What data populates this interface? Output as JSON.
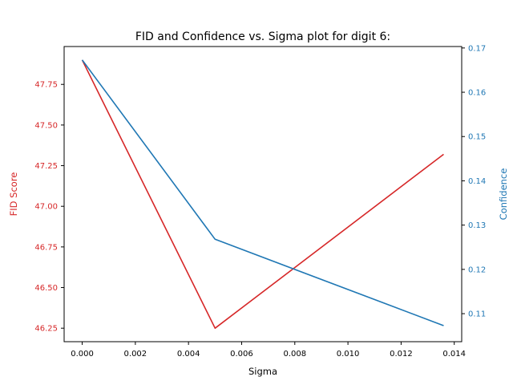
{
  "chart_data": {
    "type": "line",
    "title": "FID and Confidence vs. Sigma plot for digit 6:",
    "xlabel": "Sigma",
    "xlim": [
      -0.00068,
      0.01428
    ],
    "xticks": [
      0.0,
      0.002,
      0.004,
      0.006,
      0.008,
      0.01,
      0.012,
      0.014
    ],
    "xtick_labels": [
      "0.000",
      "0.002",
      "0.004",
      "0.006",
      "0.008",
      "0.010",
      "0.012",
      "0.014"
    ],
    "grid": false,
    "left_axis": {
      "label": "FID Score",
      "color": "#d62728",
      "ylim": [
        46.167,
        47.983
      ],
      "ticks": [
        46.25,
        46.5,
        46.75,
        47.0,
        47.25,
        47.5,
        47.75
      ],
      "tick_labels": [
        "46.25",
        "46.50",
        "46.75",
        "47.00",
        "47.25",
        "47.50",
        "47.75"
      ]
    },
    "right_axis": {
      "label": "Confidence",
      "color": "#1f77b4",
      "ylim": [
        0.10367,
        0.17033
      ],
      "ticks": [
        0.11,
        0.12,
        0.13,
        0.14,
        0.15,
        0.16,
        0.17
      ],
      "tick_labels": [
        "0.11",
        "0.12",
        "0.13",
        "0.14",
        "0.15",
        "0.16",
        "0.17"
      ]
    },
    "series": [
      {
        "axis": "left",
        "color": "#d62728",
        "x": [
          0.0,
          0.005,
          0.0136
        ],
        "y": [
          47.9,
          46.25,
          47.32
        ]
      },
      {
        "axis": "right",
        "color": "#1f77b4",
        "x": [
          0.0,
          0.005,
          0.0136
        ],
        "y": [
          0.1673,
          0.1268,
          0.1073
        ]
      }
    ]
  }
}
